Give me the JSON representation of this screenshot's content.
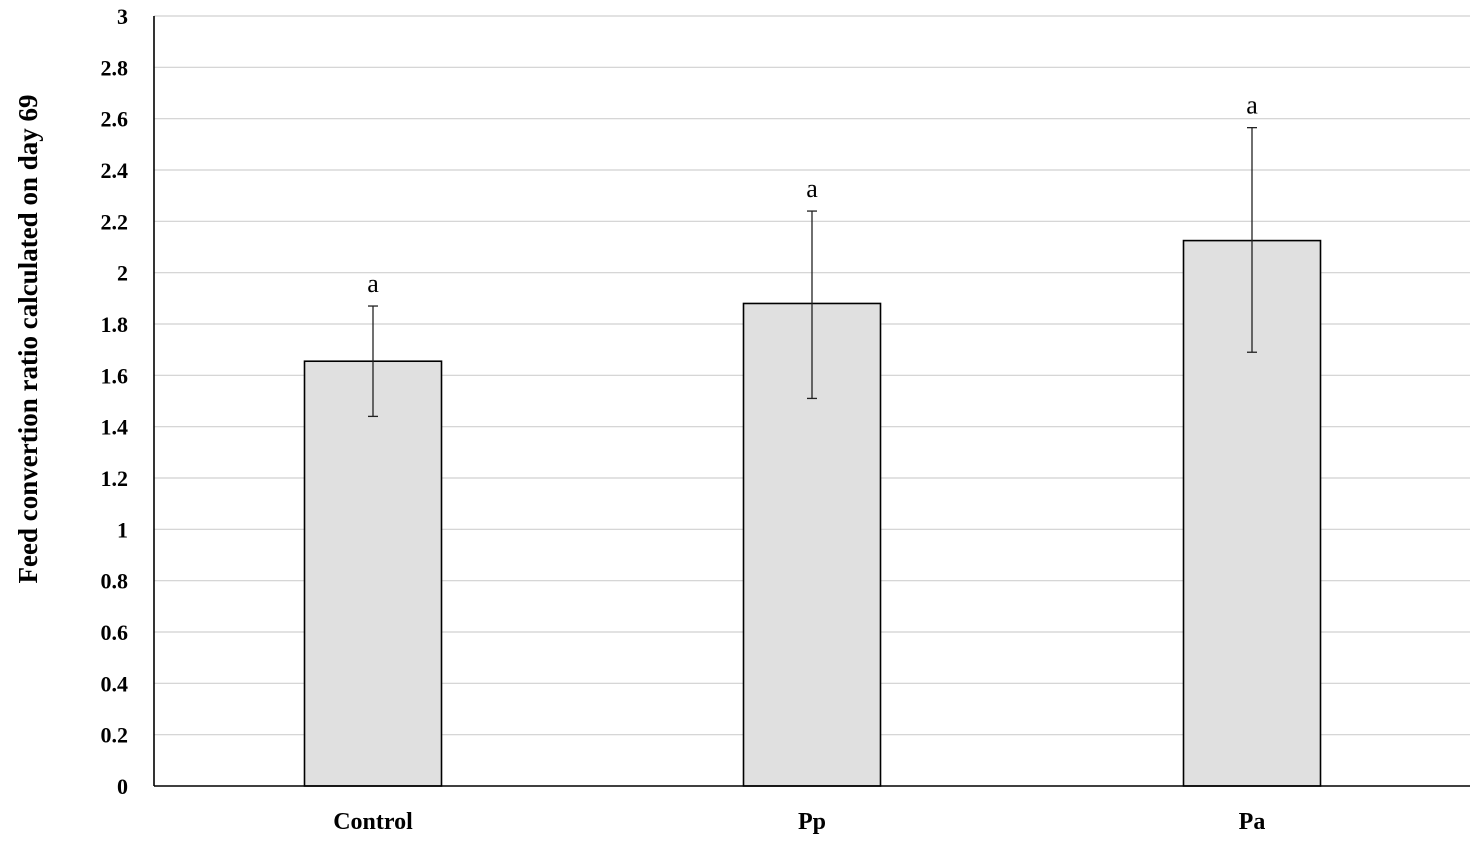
{
  "chart_data": {
    "type": "bar",
    "title": "",
    "xlabel": "",
    "ylabel": "Feed convertion ratio calculated on day 69",
    "categories": [
      "Control",
      "Pp",
      "Pa"
    ],
    "values": [
      1.655,
      1.88,
      2.125
    ],
    "error_low": [
      1.44,
      1.51,
      1.69
    ],
    "error_high": [
      1.87,
      2.24,
      2.565
    ],
    "significance_letters": [
      "a",
      "a",
      "a"
    ],
    "ylim": [
      0,
      3
    ],
    "yticks": [
      "0",
      "0.2",
      "0.4",
      "0.6",
      "0.8",
      "1",
      "1.2",
      "1.4",
      "1.6",
      "1.8",
      "2",
      "2.2",
      "2.4",
      "2.6",
      "2.8",
      "3"
    ],
    "grid": true,
    "legend": "none",
    "colors": {
      "bar_fill": "#e0e0e0",
      "bar_stroke": "#000000",
      "grid": "#d0d0d0",
      "error_bar": "#222222"
    }
  }
}
